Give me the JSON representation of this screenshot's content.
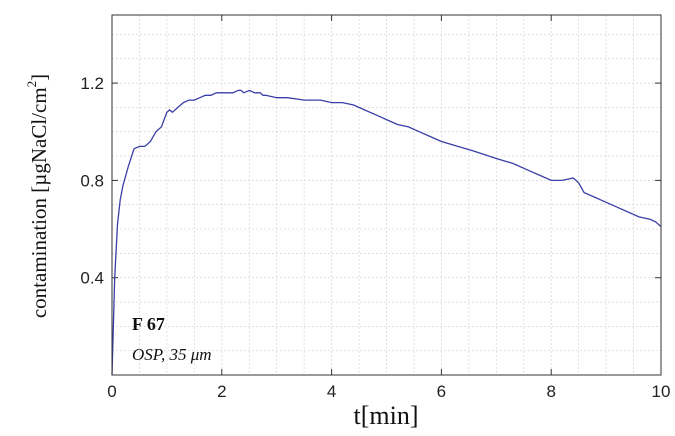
{
  "chart_data": {
    "type": "line",
    "xlabel": "t[min]",
    "ylabel_main": "contamination [µgNaCl/cm",
    "ylabel_sup": "2",
    "ylabel_close": "]",
    "xlim": [
      0,
      10
    ],
    "ylim": [
      0,
      1.48
    ],
    "x_ticks": [
      0,
      2,
      4,
      6,
      8,
      10
    ],
    "x_tick_labels": [
      "0",
      "2",
      "4",
      "6",
      "8",
      "10"
    ],
    "y_ticks": [
      0.4,
      0.8,
      1.2
    ],
    "y_tick_labels": [
      "0.4",
      "0.8",
      "1.2"
    ],
    "grid": true,
    "series": [
      {
        "color": "#3a3fa8",
        "x": [
          0,
          0.05,
          0.1,
          0.15,
          0.2,
          0.3,
          0.4,
          0.5,
          0.6,
          0.7,
          0.8,
          0.9,
          1.0,
          1.05,
          1.1,
          1.2,
          1.3,
          1.4,
          1.5,
          1.6,
          1.7,
          1.8,
          1.9,
          2.0,
          2.1,
          2.2,
          2.3,
          2.35,
          2.4,
          2.5,
          2.6,
          2.7,
          2.75,
          2.8,
          3.0,
          3.2,
          3.5,
          3.8,
          4.0,
          4.2,
          4.4,
          4.6,
          4.8,
          5.0,
          5.2,
          5.4,
          5.6,
          5.8,
          6.0,
          6.3,
          6.6,
          7.0,
          7.3,
          7.6,
          7.8,
          8.0,
          8.2,
          8.4,
          8.5,
          8.6,
          8.8,
          9.0,
          9.2,
          9.4,
          9.6,
          9.8,
          9.9,
          10.0
        ],
        "y": [
          0.0,
          0.4,
          0.62,
          0.72,
          0.78,
          0.86,
          0.93,
          0.94,
          0.94,
          0.96,
          1.0,
          1.02,
          1.08,
          1.09,
          1.08,
          1.1,
          1.12,
          1.13,
          1.13,
          1.14,
          1.15,
          1.15,
          1.16,
          1.16,
          1.16,
          1.16,
          1.17,
          1.17,
          1.16,
          1.17,
          1.16,
          1.16,
          1.15,
          1.15,
          1.14,
          1.14,
          1.13,
          1.13,
          1.12,
          1.12,
          1.11,
          1.09,
          1.07,
          1.05,
          1.03,
          1.02,
          1.0,
          0.98,
          0.96,
          0.94,
          0.92,
          0.89,
          0.87,
          0.84,
          0.82,
          0.8,
          0.8,
          0.81,
          0.79,
          0.75,
          0.73,
          0.71,
          0.69,
          0.67,
          0.65,
          0.64,
          0.63,
          0.61
        ]
      }
    ],
    "annotations": [
      "F 67",
      "OSP, 35 μm"
    ]
  }
}
